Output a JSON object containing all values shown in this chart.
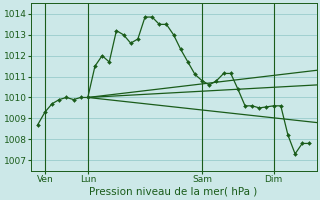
{
  "title": "Pression niveau de la mer( hPa )",
  "bg_color": "#cce8e8",
  "grid_color": "#99cccc",
  "line_color": "#1a5c1a",
  "ylim": [
    1006.5,
    1014.5
  ],
  "yticks": [
    1007,
    1008,
    1009,
    1010,
    1011,
    1012,
    1013,
    1014
  ],
  "day_labels": [
    "Ven",
    "Lun",
    "Sam",
    "Dim"
  ],
  "day_positions": [
    1,
    4,
    12,
    17
  ],
  "xlim": [
    0,
    20
  ],
  "line1_x": [
    0.5,
    1,
    1.5,
    2,
    2.5,
    3,
    3.5,
    4,
    4.5,
    5,
    5.5,
    6,
    6.5,
    7,
    7.5,
    8,
    8.5,
    9,
    9.5,
    10,
    10.5,
    11,
    11.5,
    12,
    12.5,
    13,
    13.5,
    14,
    14.5,
    15,
    15.5,
    16,
    16.5,
    17,
    17.5,
    18,
    18.5,
    19,
    19.5
  ],
  "line1_y": [
    1008.7,
    1009.3,
    1009.7,
    1009.9,
    1010.0,
    1009.9,
    1010.0,
    1010.0,
    1011.5,
    1012.0,
    1011.7,
    1013.2,
    1013.0,
    1012.6,
    1012.8,
    1013.85,
    1013.85,
    1013.5,
    1013.5,
    1013.0,
    1012.3,
    1011.7,
    1011.1,
    1010.8,
    1010.6,
    1010.8,
    1011.15,
    1011.15,
    1010.4,
    1009.6,
    1009.6,
    1009.5,
    1009.55,
    1009.6,
    1009.6,
    1008.2,
    1007.3,
    1007.8,
    1007.8
  ],
  "line2_x": [
    4,
    20
  ],
  "line2_y": [
    1010.0,
    1011.3
  ],
  "line3_x": [
    4,
    20
  ],
  "line3_y": [
    1010.0,
    1010.6
  ],
  "line4_x": [
    4,
    20
  ],
  "line4_y": [
    1010.0,
    1008.8
  ],
  "vlines": [
    1,
    4,
    12,
    17
  ],
  "ylabel_fontsize": 6.5,
  "xlabel_fontsize": 7.5,
  "tick_labelsize": 6.5
}
